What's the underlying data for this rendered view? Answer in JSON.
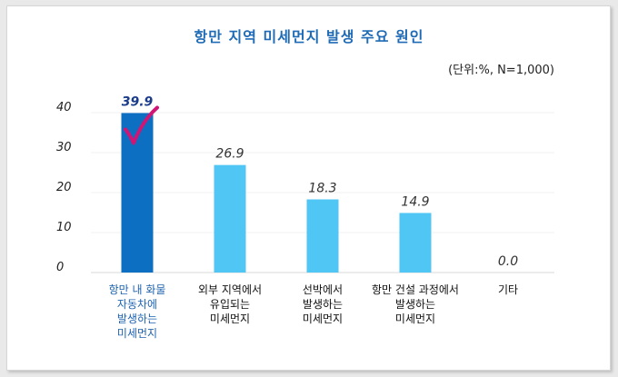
{
  "title": "항만 지역 미세먼지 발생 주요 원인",
  "unit_note": "(단위:%,  N=1,000)",
  "colors": {
    "highlight": "#0d6fc1",
    "bar": "#4fc6f4",
    "check": "#d11574",
    "title": "#1f6bb6"
  },
  "chart_data": {
    "type": "bar",
    "title": "항만 지역 미세먼지 발생 주요 원인",
    "categories": [
      "항만 내 화물\n자동차에\n발생하는\n미세먼지",
      "외부 지역에서\n유입되는\n미세먼지",
      "선박에서\n발생하는\n미세먼지",
      "항만 건설 과정에서\n발생하는\n미세먼지",
      "기타"
    ],
    "values": [
      39.9,
      26.9,
      18.3,
      14.9,
      0.0
    ],
    "value_labels": [
      "39.9",
      "26.9",
      "18.3",
      "14.9",
      "0.0"
    ],
    "yticks": [
      "0",
      "10",
      "20",
      "30",
      "40"
    ],
    "ylim": [
      0,
      40
    ],
    "highlight_index": 0,
    "grid": true,
    "legend": "none"
  }
}
